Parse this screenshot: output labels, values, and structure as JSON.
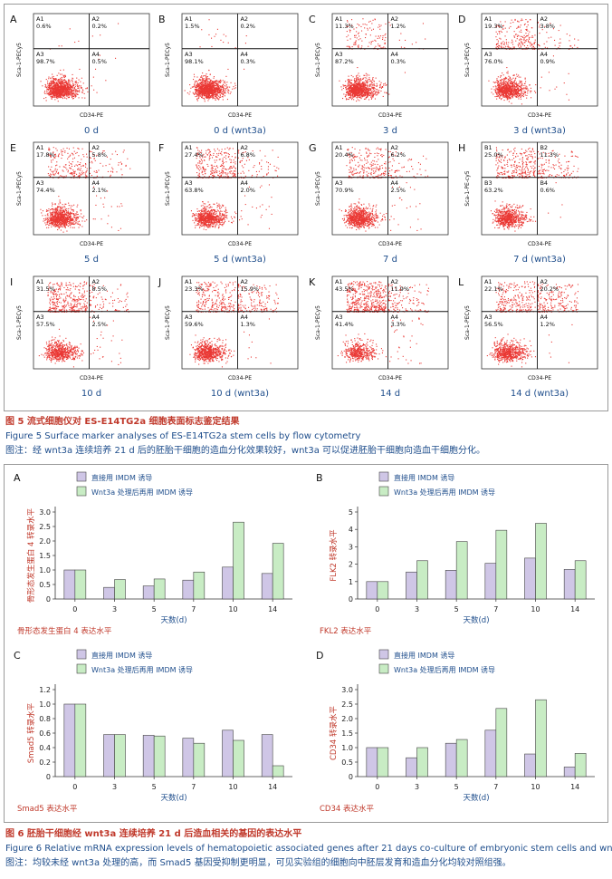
{
  "figure5": {
    "caption_cn": "图 5   流式细胞仪对 ES-E14TG2a 细胞表面标志鉴定结果",
    "caption_en": "Figure 5   Surface marker analyses of ES-E14TG2a stem cells by flow cytometry",
    "note": "图注：经 wnt3a 连续培养 21 d 后的胚胎干细胞的造血分化效果较好，wnt3a 可以促进胚胎干细胞向造血干细胞分化。",
    "x_axis_label": "CD34-PE",
    "dot_color": "#e8231f",
    "panels": [
      {
        "letter": "A",
        "label": "0 d",
        "ylabel": "Sca-1-PECy5",
        "q1": "A1",
        "q2": "A2",
        "q3": "A3",
        "q4": "A4",
        "v1": "0.6%",
        "v2": "0.2%",
        "v3": "98.7%",
        "v4": "0.5%"
      },
      {
        "letter": "B",
        "label": "0 d (wnt3a)",
        "ylabel": "Sca-1-PECy5",
        "q1": "A1",
        "q2": "A2",
        "q3": "A3",
        "q4": "A4",
        "v1": "1.5%",
        "v2": "0.2%",
        "v3": "98.1%",
        "v4": "0.3%"
      },
      {
        "letter": "C",
        "label": "3 d",
        "ylabel": "Sca-1-PECy5",
        "q1": "A1",
        "q2": "A2",
        "q3": "A3",
        "q4": "A4",
        "v1": "11.3%",
        "v2": "1.2%",
        "v3": "87.2%",
        "v4": "0.3%"
      },
      {
        "letter": "D",
        "label": "3 d (wnt3a)",
        "ylabel": "Sca-1-PECy5",
        "q1": "A1",
        "q2": "A2",
        "q3": "A3",
        "q4": "A4",
        "v1": "19.3%",
        "v2": "3.8%",
        "v3": "76.0%",
        "v4": "0.9%"
      },
      {
        "letter": "E",
        "label": "5 d",
        "ylabel": "Sca-1-PECy5",
        "q1": "A1",
        "q2": "A2",
        "q3": "A3",
        "q4": "A4",
        "v1": "17.8%",
        "v2": "5.8%",
        "v3": "74.4%",
        "v4": "2.1%"
      },
      {
        "letter": "F",
        "label": "5 d (wnt3a)",
        "ylabel": "Sca-1-PECy5",
        "q1": "A1",
        "q2": "A2",
        "q3": "A3",
        "q4": "A4",
        "v1": "27.4%",
        "v2": "6.8%",
        "v3": "63.8%",
        "v4": "2.0%"
      },
      {
        "letter": "G",
        "label": "7 d",
        "ylabel": "Sca-1-PECy5",
        "q1": "A1",
        "q2": "A2",
        "q3": "A3",
        "q4": "A4",
        "v1": "20.4%",
        "v2": "6.2%",
        "v3": "70.9%",
        "v4": "2.5%"
      },
      {
        "letter": "H",
        "label": "7 d (wnt3a)",
        "ylabel": "Sca-1-PE-cy5",
        "q1": "B1",
        "q2": "B2",
        "q3": "B3",
        "q4": "B4",
        "v1": "25.0%",
        "v2": "11.3%",
        "v3": "63.2%",
        "v4": "0.6%"
      },
      {
        "letter": "I",
        "label": "10 d",
        "ylabel": "Sca-1-PECy5",
        "q1": "A1",
        "q2": "A2",
        "q3": "A3",
        "q4": "A4",
        "v1": "31.5%",
        "v2": "8.5%",
        "v3": "57.5%",
        "v4": "2.5%"
      },
      {
        "letter": "J",
        "label": "10 d (wnt3a)",
        "ylabel": "Sca-1-PECy5",
        "q1": "A1",
        "q2": "A2",
        "q3": "A3",
        "q4": "A4",
        "v1": "23.3%",
        "v2": "15.9%",
        "v3": "59.6%",
        "v4": "1.3%"
      },
      {
        "letter": "K",
        "label": "14 d",
        "ylabel": "Sca-1-PECy5",
        "q1": "A1",
        "q2": "A2",
        "q3": "A3",
        "q4": "A4",
        "v1": "43.5%",
        "v2": "11.9%",
        "v3": "41.4%",
        "v4": "3.3%"
      },
      {
        "letter": "L",
        "label": "14 d (wnt3a)",
        "ylabel": "Sca-1-PECy5",
        "q1": "A1",
        "q2": "A2",
        "q3": "A3",
        "q4": "A4",
        "v1": "22.1%",
        "v2": "20.2%",
        "v3": "56.5%",
        "v4": "1.2%"
      }
    ]
  },
  "figure6": {
    "caption_cn": "图 6   胚胎干细胞经 wnt3a 连续培养 21 d 后造血相关的基因的表达水平",
    "caption_en": "Figure 6   Relative mRNA expression levels of hematopoietic associated genes after 21 days co-culture of embryonic stem cells and wnt3a",
    "note": "图注：均较未经 wnt3a 处理的高，而 Smad5 基因受抑制更明显，可见实验组的细胞向中胚层发育和造血分化均较对照组强。"
  },
  "chart_data": [
    {
      "type": "bar",
      "letter": "A",
      "categories": [
        "0",
        "3",
        "5",
        "7",
        "10",
        "14"
      ],
      "series": [
        {
          "name": "直接用 IMDM 诱导",
          "values": [
            1.0,
            0.4,
            0.45,
            0.65,
            1.1,
            0.88
          ]
        },
        {
          "name": "Wnt3a 处理后再用 IMDM 诱导",
          "values": [
            1.0,
            0.67,
            0.69,
            0.93,
            2.65,
            1.92
          ]
        }
      ],
      "ylim": [
        0,
        3.0
      ],
      "yticks": [
        "0",
        "0.5",
        "1.0",
        "1.5",
        "2.0",
        "2.5",
        "3.0"
      ],
      "ylabel": "骨形态发生蛋白 4 转录水平",
      "xlabel": "天数(d)",
      "footer": "骨形态发生蛋白 4 表达水平"
    },
    {
      "type": "bar",
      "letter": "B",
      "categories": [
        "0",
        "3",
        "5",
        "7",
        "10",
        "14"
      ],
      "series": [
        {
          "name": "直接用 IMDM 诱导",
          "values": [
            1.0,
            1.55,
            1.65,
            2.05,
            2.35,
            1.7
          ]
        },
        {
          "name": "Wnt3a 处理后再用 IMDM 诱导",
          "values": [
            1.0,
            2.2,
            3.3,
            3.95,
            4.35,
            2.2
          ]
        }
      ],
      "ylim": [
        0,
        5
      ],
      "yticks": [
        "0",
        "1",
        "2",
        "3",
        "4",
        "5"
      ],
      "ylabel": "FLK2 转录水平",
      "xlabel": "天数(d)",
      "footer": "FKL2 表达水平"
    },
    {
      "type": "bar",
      "letter": "C",
      "categories": [
        "0",
        "3",
        "5",
        "7",
        "10",
        "14"
      ],
      "series": [
        {
          "name": "直接用 IMDM 诱导",
          "values": [
            1.0,
            0.58,
            0.57,
            0.53,
            0.64,
            0.58
          ]
        },
        {
          "name": "Wnt3a 处理后再用 IMDM 诱导",
          "values": [
            1.0,
            0.58,
            0.56,
            0.46,
            0.5,
            0.15
          ]
        }
      ],
      "ylim": [
        0,
        1.2
      ],
      "yticks": [
        "0",
        "0.2",
        "0.4",
        "0.6",
        "0.8",
        "1.0",
        "1.2"
      ],
      "ylabel": "Smad5 转录水平",
      "xlabel": "天数(d)",
      "footer": "Smad5 表达水平"
    },
    {
      "type": "bar",
      "letter": "D",
      "categories": [
        "0",
        "3",
        "5",
        "7",
        "10",
        "14"
      ],
      "series": [
        {
          "name": "直接用 IMDM 诱导",
          "values": [
            1.0,
            0.65,
            1.15,
            1.6,
            0.78,
            0.33
          ]
        },
        {
          "name": "Wnt3a 处理后再用 IMDM 诱导",
          "values": [
            1.0,
            1.0,
            1.28,
            2.35,
            2.65,
            0.8
          ]
        }
      ],
      "ylim": [
        0,
        3.0
      ],
      "yticks": [
        "0",
        "0.5",
        "1.0",
        "1.5",
        "2.0",
        "2.5",
        "3.0"
      ],
      "ylabel": "CD34 转录水平",
      "xlabel": "天数(d)",
      "footer": "CD34 表达水平"
    }
  ],
  "colors": {
    "series_control": "#cfc6e6",
    "series_wnt3a": "#c8ecc4",
    "caption_red": "#c0392b",
    "caption_blue": "#1f4e8c",
    "label_blue": "#1f4e8c",
    "axis_red": "#c0392b"
  }
}
